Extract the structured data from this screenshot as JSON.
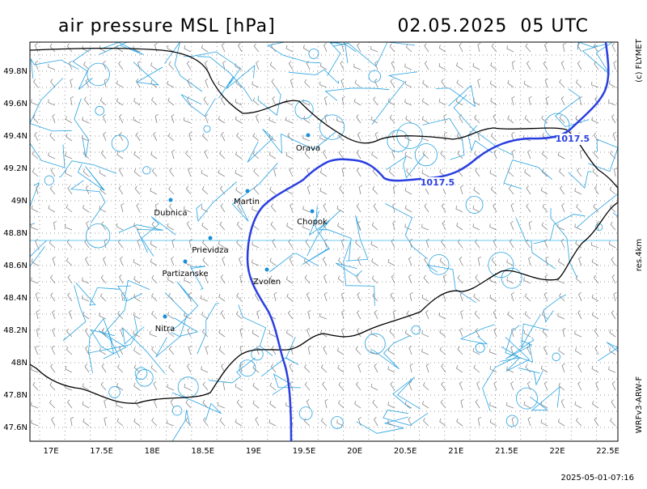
{
  "header": {
    "title": "air pressure MSL [hPa]",
    "datetime": "02.05.2025  05 UTC"
  },
  "side_labels": {
    "copyright": "(c) FLYMET",
    "resolution": "res.4km",
    "model": "WRFv3-ARW-F"
  },
  "footer": {
    "timestamp": "2025-05-01-07:16"
  },
  "lat_labels": [
    "49.8N",
    "49.6N",
    "49.4N",
    "49.2N",
    "49N",
    "48.8N",
    "48.6N",
    "48.4N",
    "48.2N",
    "48N",
    "47.8N",
    "47.6N"
  ],
  "lon_labels": [
    "17E",
    "17.5E",
    "18E",
    "18.5E",
    "19E",
    "19.5E",
    "20E",
    "20.5E",
    "21E",
    "21.5E",
    "22E",
    "22.5E"
  ],
  "cities": [
    "Orava",
    "Martin",
    "Dubnica",
    "Chopok",
    "Prievidza",
    "Partizanske",
    "Zvolen",
    "Nitra"
  ],
  "isobar_labels": [
    "1017.5",
    "1017.5"
  ]
}
